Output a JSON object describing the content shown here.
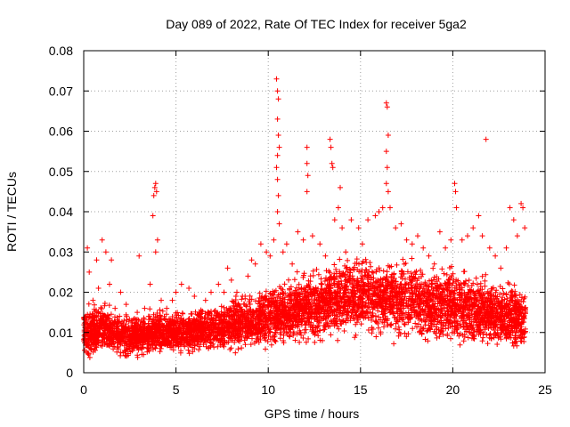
{
  "chart_data": {
    "type": "scatter",
    "title": "Day 089 of 2022, Rate Of TEC Index for receiver 5ga2",
    "xlabel": "GPS time / hours",
    "ylabel": "ROTI / TECUs",
    "xlim": [
      0,
      25
    ],
    "ylim": [
      0,
      0.08
    ],
    "x_ticks": [
      0,
      5,
      10,
      15,
      20,
      25
    ],
    "y_ticks": [
      0,
      0.01,
      0.02,
      0.03,
      0.04,
      0.05,
      0.06,
      0.07,
      0.08
    ],
    "x_tick_labels": [
      "0",
      "5",
      "10",
      "15",
      "20",
      "25"
    ],
    "y_tick_labels": [
      "0",
      "0.01",
      "0.02",
      "0.03",
      "0.04",
      "0.05",
      "0.06",
      "0.07",
      "0.08"
    ],
    "grid": true,
    "marker": "+",
    "color": "#ff0000",
    "series": [
      {
        "points": [
          [
            0.1,
            0.012
          ],
          [
            0.2,
            0.031
          ],
          [
            0.3,
            0.025
          ],
          [
            0.5,
            0.018
          ],
          [
            0.7,
            0.028
          ],
          [
            0.8,
            0.021
          ],
          [
            1.0,
            0.033
          ],
          [
            1.2,
            0.03
          ],
          [
            1.4,
            0.022
          ],
          [
            1.5,
            0.028
          ],
          [
            1.7,
            0.016
          ],
          [
            2.0,
            0.02
          ],
          [
            2.3,
            0.017
          ],
          [
            2.6,
            0.013
          ],
          [
            2.9,
            0.015
          ],
          [
            3.0,
            0.029
          ],
          [
            3.3,
            0.016
          ],
          [
            3.6,
            0.022
          ],
          [
            3.75,
            0.039
          ],
          [
            3.8,
            0.044
          ],
          [
            3.85,
            0.046
          ],
          [
            3.9,
            0.047
          ],
          [
            3.95,
            0.045
          ],
          [
            4.0,
            0.033
          ],
          [
            3.9,
            0.03
          ],
          [
            4.2,
            0.018
          ],
          [
            4.5,
            0.016
          ],
          [
            4.8,
            0.018
          ],
          [
            5.0,
            0.02
          ],
          [
            5.3,
            0.022
          ],
          [
            5.7,
            0.021
          ],
          [
            6.0,
            0.019
          ],
          [
            6.3,
            0.014
          ],
          [
            6.6,
            0.018
          ],
          [
            6.9,
            0.02
          ],
          [
            7.3,
            0.022
          ],
          [
            7.6,
            0.02
          ],
          [
            7.8,
            0.026
          ],
          [
            8.0,
            0.023
          ],
          [
            8.3,
            0.02
          ],
          [
            8.6,
            0.019
          ],
          [
            8.9,
            0.024
          ],
          [
            9.1,
            0.028
          ],
          [
            9.3,
            0.027
          ],
          [
            9.6,
            0.032
          ],
          [
            9.9,
            0.03
          ],
          [
            10.1,
            0.029
          ],
          [
            10.3,
            0.033
          ],
          [
            10.45,
            0.073
          ],
          [
            10.5,
            0.07
          ],
          [
            10.55,
            0.068
          ],
          [
            10.5,
            0.063
          ],
          [
            10.55,
            0.059
          ],
          [
            10.6,
            0.056
          ],
          [
            10.5,
            0.054
          ],
          [
            10.45,
            0.051
          ],
          [
            10.5,
            0.048
          ],
          [
            10.55,
            0.044
          ],
          [
            10.5,
            0.04
          ],
          [
            10.6,
            0.037
          ],
          [
            10.8,
            0.03
          ],
          [
            11.0,
            0.032
          ],
          [
            11.3,
            0.027
          ],
          [
            11.6,
            0.035
          ],
          [
            11.9,
            0.033
          ],
          [
            12.1,
            0.056
          ],
          [
            12.1,
            0.052
          ],
          [
            12.15,
            0.049
          ],
          [
            12.1,
            0.045
          ],
          [
            12.4,
            0.034
          ],
          [
            12.8,
            0.032
          ],
          [
            13.1,
            0.029
          ],
          [
            13.35,
            0.058
          ],
          [
            13.4,
            0.056
          ],
          [
            13.45,
            0.052
          ],
          [
            13.5,
            0.051
          ],
          [
            13.6,
            0.038
          ],
          [
            13.8,
            0.041
          ],
          [
            13.9,
            0.046
          ],
          [
            14.0,
            0.036
          ],
          [
            14.2,
            0.03
          ],
          [
            14.5,
            0.038
          ],
          [
            14.9,
            0.036
          ],
          [
            15.1,
            0.032
          ],
          [
            15.4,
            0.038
          ],
          [
            15.8,
            0.039
          ],
          [
            16.0,
            0.04
          ],
          [
            16.2,
            0.041
          ],
          [
            16.4,
            0.067
          ],
          [
            16.45,
            0.066
          ],
          [
            16.5,
            0.059
          ],
          [
            16.4,
            0.055
          ],
          [
            16.45,
            0.051
          ],
          [
            16.4,
            0.047
          ],
          [
            16.5,
            0.045
          ],
          [
            16.6,
            0.041
          ],
          [
            16.9,
            0.036
          ],
          [
            17.2,
            0.037
          ],
          [
            17.5,
            0.033
          ],
          [
            17.8,
            0.032
          ],
          [
            18.1,
            0.034
          ],
          [
            18.4,
            0.031
          ],
          [
            18.7,
            0.029
          ],
          [
            19.0,
            0.027
          ],
          [
            19.3,
            0.035
          ],
          [
            19.6,
            0.031
          ],
          [
            19.9,
            0.033
          ],
          [
            20.1,
            0.047
          ],
          [
            20.15,
            0.045
          ],
          [
            20.2,
            0.041
          ],
          [
            20.5,
            0.033
          ],
          [
            20.8,
            0.034
          ],
          [
            21.1,
            0.036
          ],
          [
            21.4,
            0.039
          ],
          [
            21.6,
            0.034
          ],
          [
            21.8,
            0.058
          ],
          [
            22.0,
            0.031
          ],
          [
            22.3,
            0.029
          ],
          [
            22.6,
            0.026
          ],
          [
            22.9,
            0.031
          ],
          [
            23.1,
            0.041
          ],
          [
            23.3,
            0.038
          ],
          [
            23.5,
            0.034
          ],
          [
            23.7,
            0.042
          ],
          [
            23.8,
            0.041
          ],
          [
            23.9,
            0.036
          ]
        ]
      }
    ],
    "density_profile": [
      [
        0,
        0.01,
        0.006
      ],
      [
        1,
        0.011,
        0.006
      ],
      [
        2,
        0.009,
        0.005
      ],
      [
        3,
        0.009,
        0.005
      ],
      [
        4,
        0.01,
        0.005
      ],
      [
        5,
        0.01,
        0.005
      ],
      [
        6,
        0.01,
        0.005
      ],
      [
        7,
        0.011,
        0.005
      ],
      [
        8,
        0.012,
        0.006
      ],
      [
        9,
        0.013,
        0.006
      ],
      [
        10,
        0.014,
        0.007
      ],
      [
        11,
        0.015,
        0.007
      ],
      [
        12,
        0.016,
        0.008
      ],
      [
        13,
        0.017,
        0.008
      ],
      [
        14,
        0.019,
        0.009
      ],
      [
        15,
        0.019,
        0.009
      ],
      [
        16,
        0.019,
        0.009
      ],
      [
        17,
        0.018,
        0.009
      ],
      [
        18,
        0.018,
        0.009
      ],
      [
        19,
        0.017,
        0.009
      ],
      [
        20,
        0.017,
        0.009
      ],
      [
        21,
        0.016,
        0.008
      ],
      [
        22,
        0.015,
        0.008
      ],
      [
        23,
        0.014,
        0.008
      ],
      [
        24,
        0.013,
        0.007
      ]
    ]
  }
}
